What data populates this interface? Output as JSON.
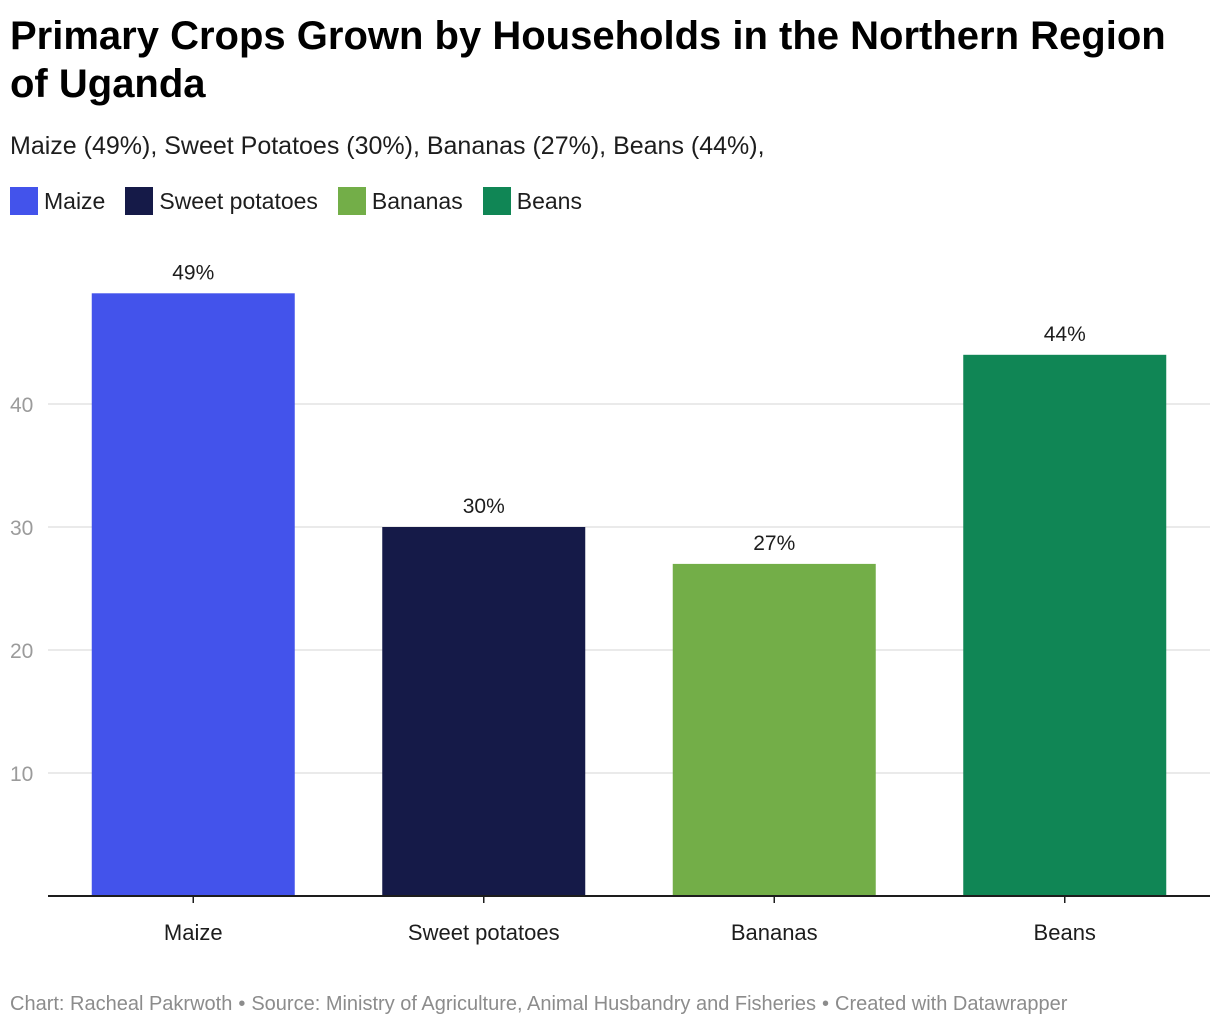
{
  "header": {
    "title": "Primary Crops Grown by Households in the Northern Region of Uganda",
    "subtitle": "Maize (49%), Sweet Potatoes (30%), Bananas (27%), Beans (44%),"
  },
  "legend": [
    {
      "label": "Maize",
      "color": "#4353eb"
    },
    {
      "label": "Sweet potatoes",
      "color": "#151a48"
    },
    {
      "label": "Bananas",
      "color": "#73ae48"
    },
    {
      "label": "Beans",
      "color": "#108655"
    }
  ],
  "chart_data": {
    "type": "bar",
    "categories": [
      "Maize",
      "Sweet potatoes",
      "Bananas",
      "Beans"
    ],
    "values": [
      49,
      30,
      27,
      44
    ],
    "data_labels": [
      "49%",
      "30%",
      "27%",
      "44%"
    ],
    "colors": [
      "#4353eb",
      "#151a48",
      "#73ae48",
      "#108655"
    ],
    "ylim": [
      0,
      52
    ],
    "yticks": [
      10,
      20,
      30,
      40
    ],
    "grid": true,
    "legend_position": "top-left"
  },
  "footer": {
    "chart_credit": "Chart: Racheal Pakrwoth",
    "source": "Source: Ministry of Agriculture, Animal Husbandry and Fisheries",
    "created_with": "Created with Datawrapper"
  }
}
